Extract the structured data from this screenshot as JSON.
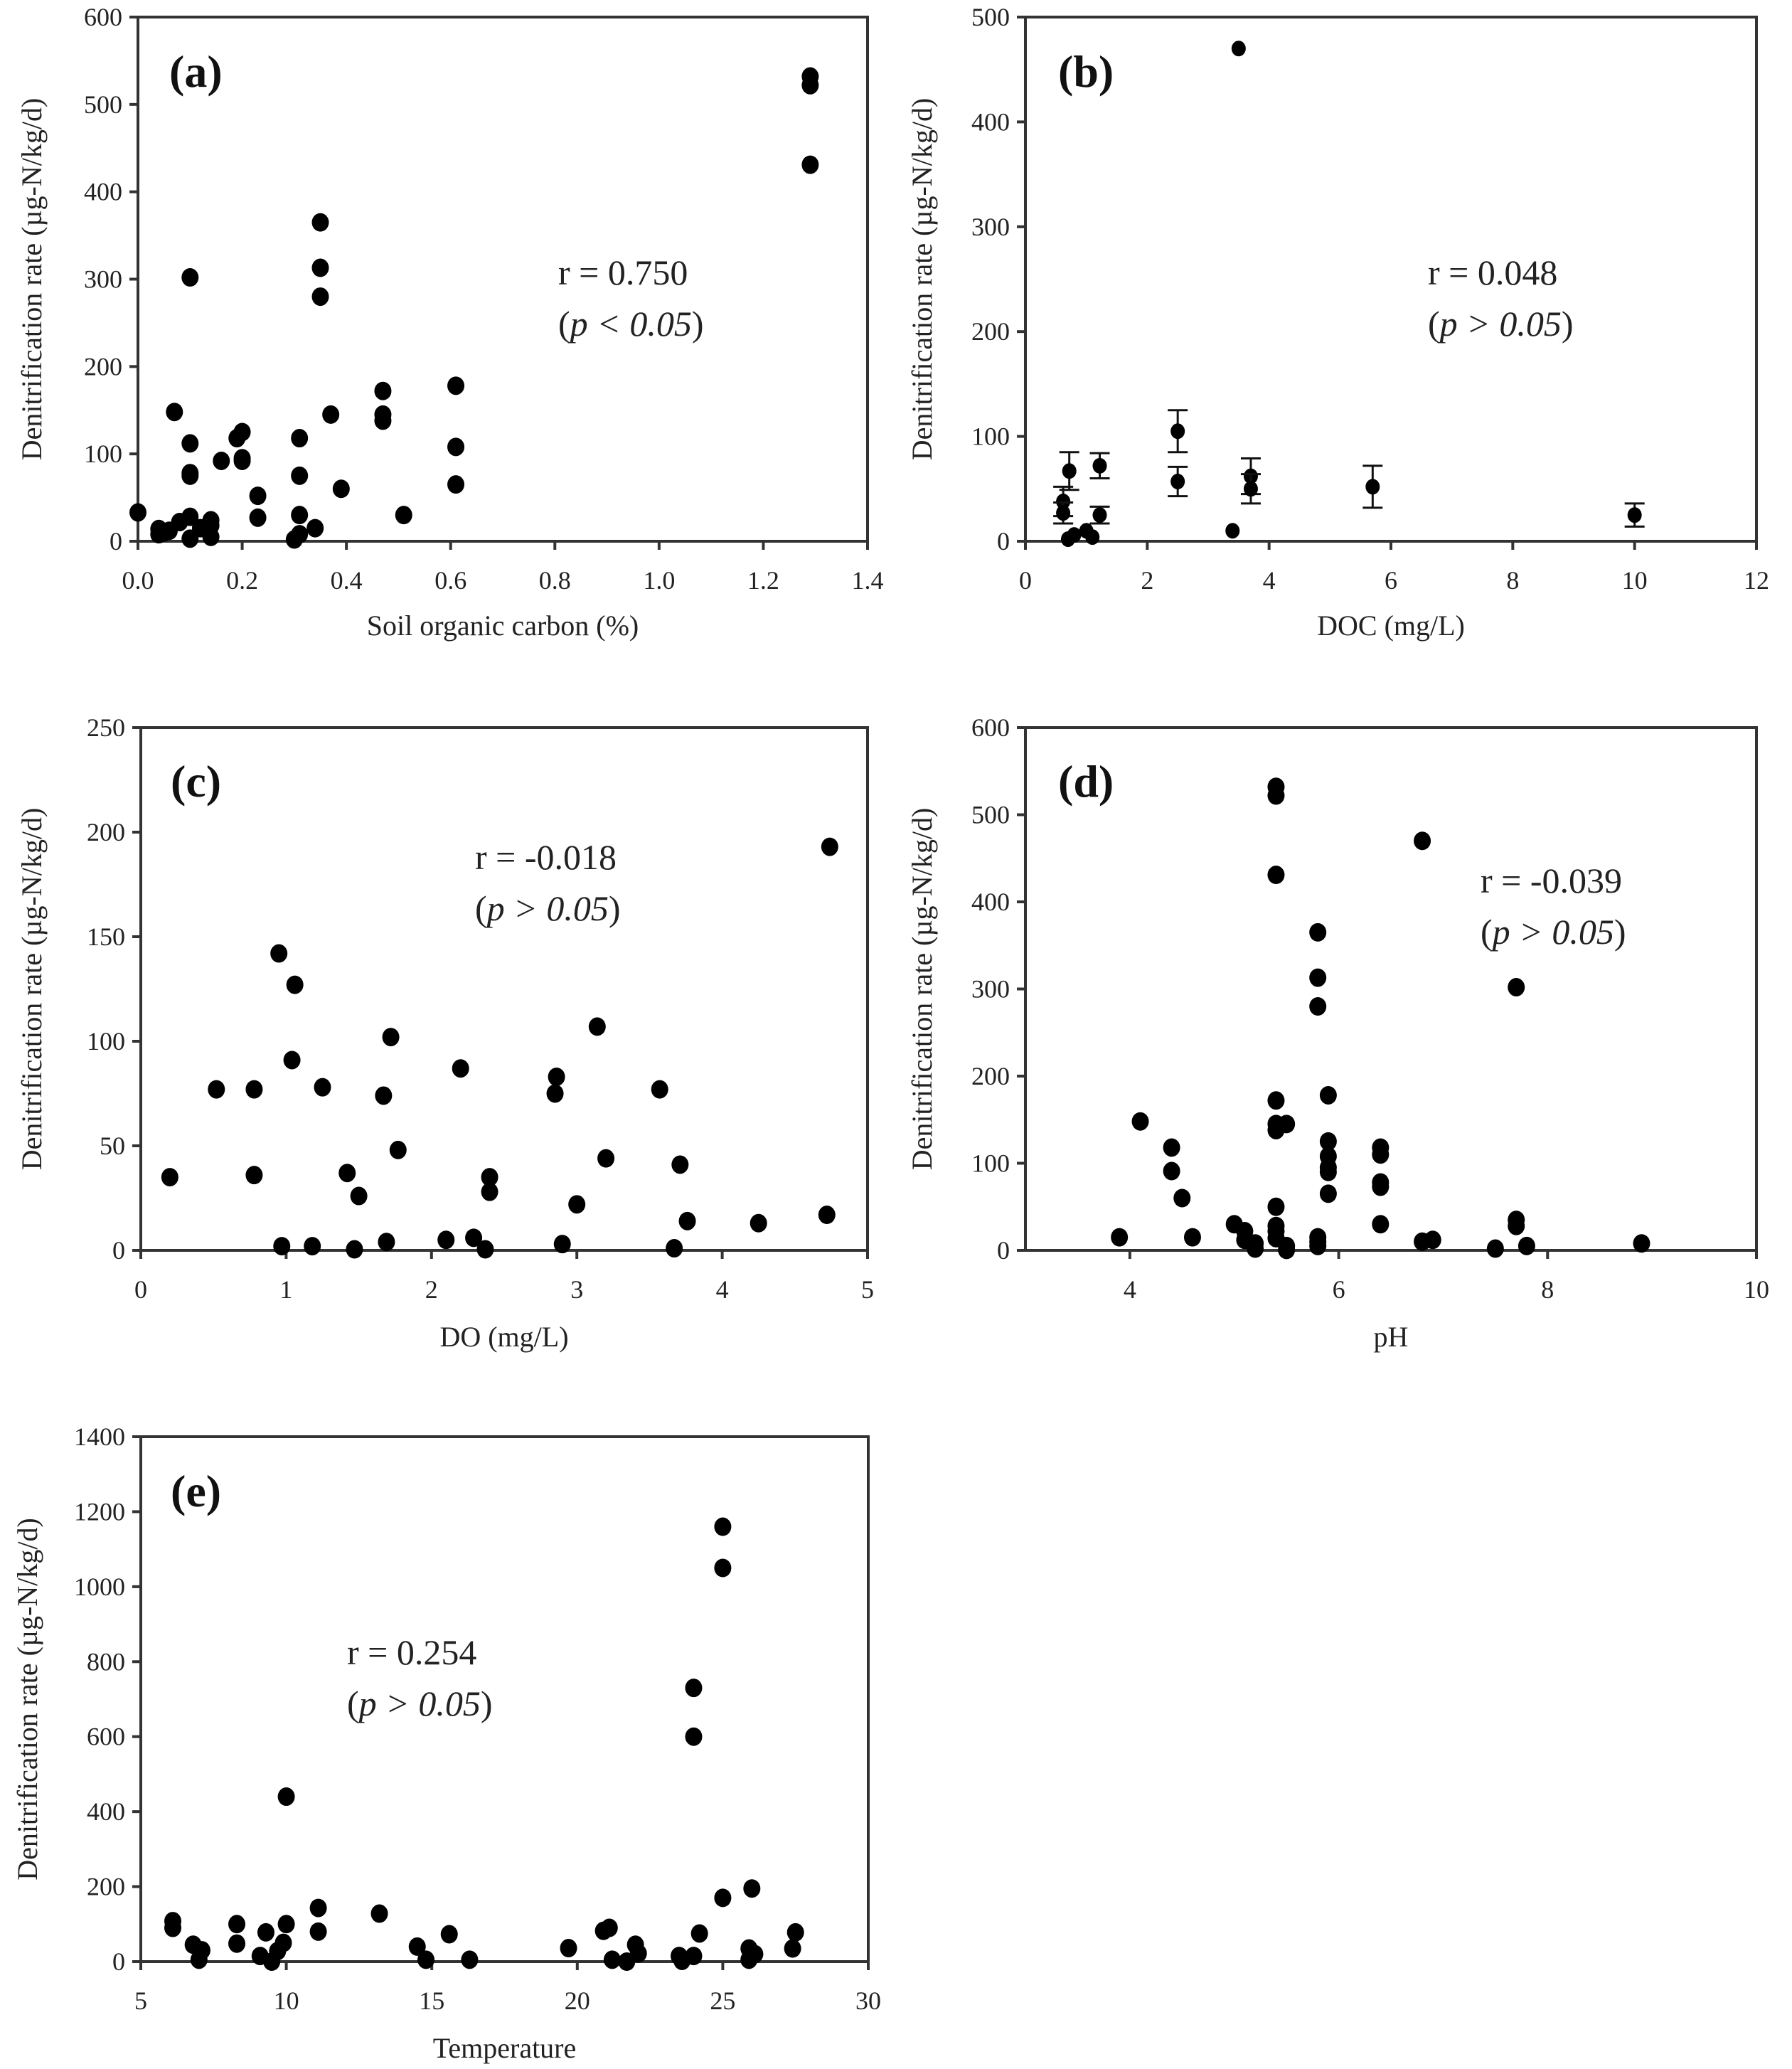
{
  "figure": {
    "colors": {
      "marker": "#000000",
      "axis": "#333333",
      "text": "#222222",
      "background": "#ffffff"
    }
  },
  "chart_data": [
    {
      "id": "a",
      "type": "scatter",
      "panel_label": "(a)",
      "xlabel": "Soil organic carbon (%)",
      "ylabel": "Denitrification rate (µg-N/kg/d)",
      "xlim": [
        0.0,
        1.4
      ],
      "ylim": [
        0,
        600
      ],
      "xticks": [
        "0.0",
        "0.2",
        "0.4",
        "0.6",
        "0.8",
        "1.0",
        "1.2",
        "1.4"
      ],
      "xtick_values": [
        0.0,
        0.2,
        0.4,
        0.6,
        0.8,
        1.0,
        1.2,
        1.4
      ],
      "yticks": [
        "0",
        "100",
        "200",
        "300",
        "400",
        "500",
        "600"
      ],
      "ytick_values": [
        0,
        100,
        200,
        300,
        400,
        500,
        600
      ],
      "annotation": {
        "r": "r = 0.750",
        "p_open": "(",
        "p_var": "p",
        "p_rest": " < 0.05",
        "p_close": ")"
      },
      "annotation_position": "upper-middle-right",
      "grid": false,
      "points": [
        [
          0.0,
          33
        ],
        [
          0.04,
          8
        ],
        [
          0.04,
          14
        ],
        [
          0.05,
          10
        ],
        [
          0.06,
          12
        ],
        [
          0.07,
          148
        ],
        [
          0.08,
          22
        ],
        [
          0.1,
          28
        ],
        [
          0.1,
          3
        ],
        [
          0.1,
          302
        ],
        [
          0.1,
          112
        ],
        [
          0.1,
          78
        ],
        [
          0.1,
          75
        ],
        [
          0.12,
          15
        ],
        [
          0.14,
          5
        ],
        [
          0.14,
          18
        ],
        [
          0.14,
          24
        ],
        [
          0.16,
          92
        ],
        [
          0.19,
          118
        ],
        [
          0.2,
          125
        ],
        [
          0.2,
          95
        ],
        [
          0.2,
          92
        ],
        [
          0.23,
          52
        ],
        [
          0.23,
          27
        ],
        [
          0.3,
          2
        ],
        [
          0.31,
          8
        ],
        [
          0.31,
          30
        ],
        [
          0.31,
          118
        ],
        [
          0.31,
          75
        ],
        [
          0.34,
          15
        ],
        [
          0.35,
          365
        ],
        [
          0.35,
          313
        ],
        [
          0.35,
          280
        ],
        [
          0.37,
          145
        ],
        [
          0.39,
          60
        ],
        [
          0.47,
          172
        ],
        [
          0.47,
          145
        ],
        [
          0.47,
          138
        ],
        [
          0.51,
          30
        ],
        [
          0.61,
          178
        ],
        [
          0.61,
          108
        ],
        [
          0.61,
          65
        ],
        [
          1.29,
          532
        ],
        [
          1.29,
          522
        ],
        [
          1.29,
          431
        ]
      ]
    },
    {
      "id": "b",
      "type": "scatter",
      "panel_label": "(b)",
      "xlabel": "DOC (mg/L)",
      "ylabel": "Denitrification rate (µg-N/kg/d)",
      "xlim": [
        0,
        12
      ],
      "ylim": [
        0,
        500
      ],
      "xticks": [
        "0",
        "2",
        "4",
        "6",
        "8",
        "10",
        "12"
      ],
      "xtick_values": [
        0,
        2,
        4,
        6,
        8,
        10,
        12
      ],
      "yticks": [
        "0",
        "100",
        "200",
        "300",
        "400",
        "500"
      ],
      "ytick_values": [
        0,
        100,
        200,
        300,
        400,
        500
      ],
      "annotation": {
        "r": "r = 0.048",
        "p_open": "(",
        "p_var": "p",
        "p_rest": " > 0.05",
        "p_close": ")"
      },
      "annotation_position": "middle-right",
      "grid": false,
      "points": [
        [
          0.62,
          38,
          14
        ],
        [
          0.62,
          27,
          10
        ],
        [
          0.72,
          67,
          18
        ],
        [
          0.7,
          2,
          0
        ],
        [
          0.8,
          6,
          0
        ],
        [
          1.0,
          10,
          0
        ],
        [
          1.1,
          4,
          0
        ],
        [
          1.22,
          72,
          12
        ],
        [
          1.22,
          25,
          8
        ],
        [
          2.5,
          105,
          20
        ],
        [
          2.5,
          57,
          14
        ],
        [
          3.4,
          10,
          0
        ],
        [
          3.5,
          470,
          0
        ],
        [
          3.7,
          62,
          17
        ],
        [
          3.7,
          50,
          14
        ],
        [
          5.7,
          52,
          20
        ],
        [
          10.0,
          25,
          11
        ]
      ],
      "points_format": "[x, y, error]"
    },
    {
      "id": "c",
      "type": "scatter",
      "panel_label": "(c)",
      "xlabel": "DO (mg/L)",
      "ylabel": "Denitrification rate (µg-N/kg/d)",
      "xlim": [
        0,
        5
      ],
      "ylim": [
        0,
        250
      ],
      "xticks": [
        "0",
        "1",
        "2",
        "3",
        "4",
        "5"
      ],
      "xtick_values": [
        0,
        1,
        2,
        3,
        4,
        5
      ],
      "yticks": [
        "0",
        "50",
        "100",
        "150",
        "200",
        "250"
      ],
      "ytick_values": [
        0,
        50,
        100,
        150,
        200,
        250
      ],
      "annotation": {
        "r": "r = -0.018",
        "p_open": "(",
        "p_var": "p",
        "p_rest": " > 0.05",
        "p_close": ")"
      },
      "annotation_position": "upper-middle",
      "grid": false,
      "points": [
        [
          0.2,
          35
        ],
        [
          0.52,
          77
        ],
        [
          0.78,
          77
        ],
        [
          0.78,
          36
        ],
        [
          0.95,
          142
        ],
        [
          0.97,
          2
        ],
        [
          1.04,
          91
        ],
        [
          1.06,
          127
        ],
        [
          1.18,
          2
        ],
        [
          1.25,
          78
        ],
        [
          1.42,
          37
        ],
        [
          1.47,
          0.5
        ],
        [
          1.5,
          26
        ],
        [
          1.67,
          74
        ],
        [
          1.69,
          4
        ],
        [
          1.72,
          102
        ],
        [
          1.77,
          48
        ],
        [
          2.1,
          5
        ],
        [
          2.2,
          87
        ],
        [
          2.29,
          6
        ],
        [
          2.37,
          0.5
        ],
        [
          2.4,
          35
        ],
        [
          2.4,
          28
        ],
        [
          2.85,
          75
        ],
        [
          2.86,
          83
        ],
        [
          2.9,
          3
        ],
        [
          3.0,
          22
        ],
        [
          3.14,
          107
        ],
        [
          3.2,
          44
        ],
        [
          3.57,
          77
        ],
        [
          3.67,
          1
        ],
        [
          3.71,
          41
        ],
        [
          3.76,
          14
        ],
        [
          4.25,
          13
        ],
        [
          4.72,
          17
        ],
        [
          4.74,
          193
        ]
      ]
    },
    {
      "id": "d",
      "type": "scatter",
      "panel_label": "(d)",
      "xlabel": "pH",
      "ylabel": "Denitrification rate (µg-N/kg/d)",
      "xlim": [
        3,
        10
      ],
      "ylim": [
        0,
        600
      ],
      "xticks": [
        "4",
        "6",
        "8",
        "10"
      ],
      "xtick_values": [
        4,
        6,
        8,
        10
      ],
      "yticks": [
        "0",
        "100",
        "200",
        "300",
        "400",
        "500",
        "600"
      ],
      "ytick_values": [
        0,
        100,
        200,
        300,
        400,
        500,
        600
      ],
      "annotation": {
        "r": "r = -0.039",
        "p_open": "(",
        "p_var": "p",
        "p_rest": " > 0.05",
        "p_close": ")"
      },
      "annotation_position": "upper-right",
      "grid": false,
      "points": [
        [
          3.9,
          15
        ],
        [
          4.1,
          148
        ],
        [
          4.4,
          118
        ],
        [
          4.4,
          91
        ],
        [
          4.5,
          60
        ],
        [
          4.6,
          15
        ],
        [
          5.0,
          30
        ],
        [
          5.1,
          22
        ],
        [
          5.1,
          12
        ],
        [
          5.2,
          8
        ],
        [
          5.2,
          2
        ],
        [
          5.4,
          532
        ],
        [
          5.4,
          522
        ],
        [
          5.4,
          431
        ],
        [
          5.4,
          172
        ],
        [
          5.4,
          145
        ],
        [
          5.4,
          138
        ],
        [
          5.4,
          50
        ],
        [
          5.4,
          28
        ],
        [
          5.4,
          22
        ],
        [
          5.4,
          14
        ],
        [
          5.5,
          145
        ],
        [
          5.5,
          5
        ],
        [
          5.5,
          0.5
        ],
        [
          5.8,
          365
        ],
        [
          5.8,
          313
        ],
        [
          5.8,
          280
        ],
        [
          5.8,
          15
        ],
        [
          5.8,
          10
        ],
        [
          5.8,
          5
        ],
        [
          5.9,
          178
        ],
        [
          5.9,
          125
        ],
        [
          5.9,
          108
        ],
        [
          5.9,
          95
        ],
        [
          5.9,
          90
        ],
        [
          5.9,
          65
        ],
        [
          6.4,
          118
        ],
        [
          6.4,
          110
        ],
        [
          6.4,
          78
        ],
        [
          6.4,
          73
        ],
        [
          6.4,
          30
        ],
        [
          6.8,
          470
        ],
        [
          6.8,
          10
        ],
        [
          6.9,
          12
        ],
        [
          7.5,
          2
        ],
        [
          7.7,
          302
        ],
        [
          7.7,
          35
        ],
        [
          7.7,
          28
        ],
        [
          7.8,
          5
        ],
        [
          8.9,
          8
        ]
      ]
    },
    {
      "id": "e",
      "type": "scatter",
      "panel_label": "(e)",
      "xlabel": "Temperature",
      "ylabel": "Denitrification rate (µg-N/kg/d)",
      "xlim": [
        5,
        30
      ],
      "ylim": [
        0,
        1400
      ],
      "xticks": [
        "5",
        "10",
        "15",
        "20",
        "25",
        "30"
      ],
      "xtick_values": [
        5,
        10,
        15,
        20,
        25,
        30
      ],
      "yticks": [
        "0",
        "200",
        "400",
        "600",
        "800",
        "1000",
        "1200",
        "1400"
      ],
      "ytick_values": [
        0,
        200,
        400,
        600,
        800,
        1000,
        1200,
        1400
      ],
      "annotation": {
        "r": "r = 0.254",
        "p_open": "(",
        "p_var": "p",
        "p_rest": " > 0.05",
        "p_close": ")"
      },
      "annotation_position": "upper-left-middle",
      "grid": false,
      "points": [
        [
          6.1,
          108
        ],
        [
          6.1,
          90
        ],
        [
          6.8,
          45
        ],
        [
          7.0,
          5
        ],
        [
          7.1,
          30
        ],
        [
          8.3,
          100
        ],
        [
          8.3,
          48
        ],
        [
          9.1,
          15
        ],
        [
          9.3,
          78
        ],
        [
          9.5,
          0
        ],
        [
          9.7,
          28
        ],
        [
          9.9,
          50
        ],
        [
          10.0,
          100
        ],
        [
          10.0,
          440
        ],
        [
          11.1,
          143
        ],
        [
          11.1,
          80
        ],
        [
          13.2,
          128
        ],
        [
          14.5,
          40
        ],
        [
          14.8,
          5
        ],
        [
          15.6,
          73
        ],
        [
          16.3,
          5
        ],
        [
          19.7,
          36
        ],
        [
          20.9,
          82
        ],
        [
          21.1,
          90
        ],
        [
          21.2,
          5
        ],
        [
          21.7,
          0
        ],
        [
          22.0,
          45
        ],
        [
          22.1,
          22
        ],
        [
          23.5,
          15
        ],
        [
          23.6,
          2
        ],
        [
          24.0,
          15
        ],
        [
          24.0,
          730
        ],
        [
          24.0,
          600
        ],
        [
          24.2,
          75
        ],
        [
          25.0,
          1160
        ],
        [
          25.0,
          1050
        ],
        [
          25.0,
          170
        ],
        [
          25.9,
          35
        ],
        [
          25.9,
          5
        ],
        [
          26.0,
          195
        ],
        [
          26.1,
          20
        ],
        [
          27.4,
          35
        ],
        [
          27.5,
          78
        ]
      ]
    }
  ]
}
